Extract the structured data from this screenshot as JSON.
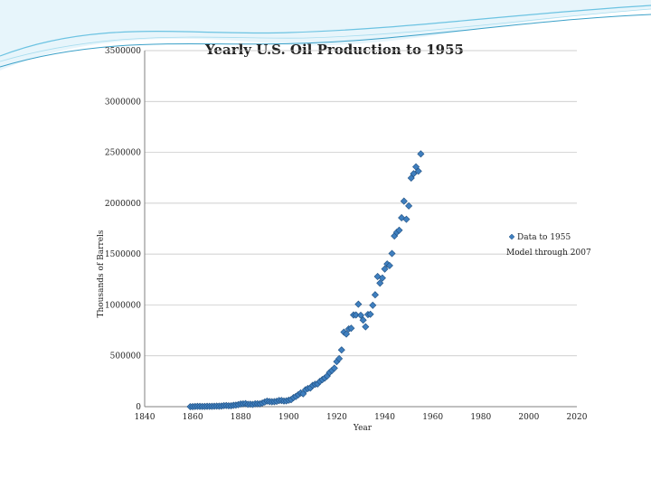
{
  "colors": {
    "marker_fill": "#3f7fbf",
    "marker_stroke": "#1f4f80",
    "grid": "#bfbfbf",
    "axis": "#808080",
    "header_wave": "#3aa0c8"
  },
  "chart_data": {
    "type": "scatter",
    "title": "Yearly U.S. Oil Production to 1955",
    "xlabel": "Year",
    "ylabel": "Thousands of Barrels",
    "xlim": [
      1840,
      2020
    ],
    "ylim": [
      0,
      3500000
    ],
    "x_ticks": [
      1840,
      1860,
      1880,
      1900,
      1920,
      1940,
      1960,
      1980,
      2000,
      2020
    ],
    "y_ticks": [
      0,
      500000,
      1000000,
      1500000,
      2000000,
      2500000,
      3000000,
      3500000
    ],
    "grid": "horizontal",
    "legend_position": "right",
    "series": [
      {
        "name": "Data to 1955",
        "marker": "diamond",
        "x": [
          1859,
          1860,
          1861,
          1862,
          1863,
          1864,
          1865,
          1866,
          1867,
          1868,
          1869,
          1870,
          1871,
          1872,
          1873,
          1874,
          1875,
          1876,
          1877,
          1878,
          1879,
          1880,
          1881,
          1882,
          1883,
          1884,
          1885,
          1886,
          1887,
          1888,
          1889,
          1890,
          1891,
          1892,
          1893,
          1894,
          1895,
          1896,
          1897,
          1898,
          1899,
          1900,
          1901,
          1902,
          1903,
          1904,
          1905,
          1906,
          1907,
          1908,
          1909,
          1910,
          1911,
          1912,
          1913,
          1914,
          1915,
          1916,
          1917,
          1918,
          1919,
          1920,
          1921,
          1922,
          1923,
          1924,
          1925,
          1926,
          1927,
          1928,
          1929,
          1930,
          1931,
          1932,
          1933,
          1934,
          1935,
          1936,
          1937,
          1938,
          1939,
          1940,
          1941,
          1942,
          1943,
          1944,
          1945,
          1946,
          1947,
          1948,
          1949,
          1950,
          1951,
          1952,
          1953,
          1954,
          1955
        ],
        "y": [
          2,
          500,
          2100,
          3000,
          2600,
          2100,
          2500,
          3600,
          3300,
          3600,
          4200,
          5300,
          5200,
          6300,
          9900,
          10900,
          8800,
          9100,
          13400,
          15400,
          19900,
          26300,
          27700,
          30300,
          23400,
          24200,
          21900,
          28100,
          28300,
          27600,
          35200,
          45800,
          54300,
          50500,
          48400,
          49300,
          52900,
          60500,
          60500,
          55400,
          57100,
          63600,
          69400,
          88800,
          100500,
          117100,
          134700,
          126500,
          166100,
          178500,
          183200,
          209600,
          220400,
          222900,
          248400,
          265800,
          281100,
          300800,
          335300,
          355900,
          378400,
          442900,
          472200,
          557500,
          732400,
          713900,
          763700,
          770900,
          901100,
          901500,
          1007300,
          898000,
          851100,
          785200,
          905700,
          908100,
          996600,
          1099700,
          1279200,
          1214400,
          1264300,
          1353200,
          1402200,
          1386600,
          1505600,
          1677900,
          1713700,
          1733900,
          1857000,
          2020200,
          1841900,
          1973600,
          2247700,
          2289800,
          2357100,
          2315000,
          2484400
        ]
      },
      {
        "name": "Model through 2007",
        "marker": "line",
        "x": [],
        "y": []
      }
    ]
  }
}
